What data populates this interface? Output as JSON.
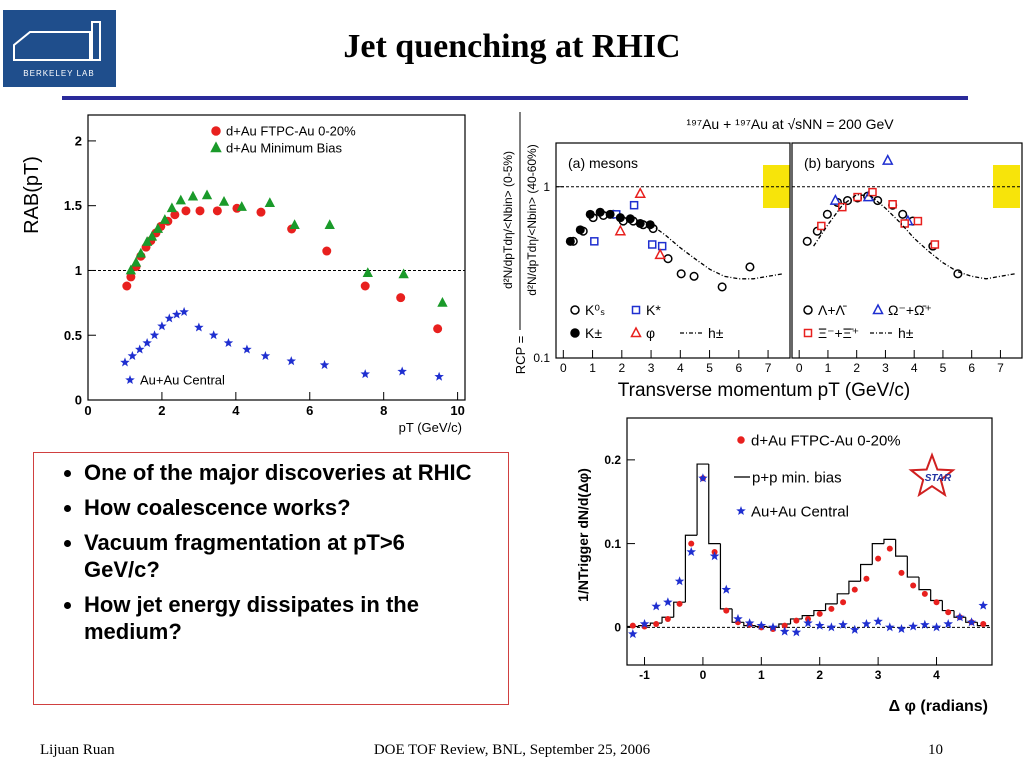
{
  "logo": {
    "text": "BERKELEY LAB"
  },
  "title": "Jet quenching at RHIC",
  "bullets": [
    "One of the major discoveries at RHIC",
    "How coalescence works?",
    "Vacuum fragmentation at pT>6 GeV/c?",
    "How jet energy dissipates in the medium?"
  ],
  "footer": {
    "left": "Lijuan Ruan",
    "center": "DOE TOF Review, BNL, September 25, 2006",
    "right": "10"
  },
  "chart_data": [
    {
      "type": "scatter",
      "xlabel": "pT (GeV/c)",
      "ylabel": "RAB(pT)",
      "xlim": [
        0,
        10.2
      ],
      "ylim": [
        0,
        2.2
      ],
      "xticks": [
        0,
        2,
        4,
        6,
        8,
        10
      ],
      "yticks": [
        0,
        0.5,
        1,
        1.5,
        2
      ],
      "reference_line": 1,
      "series": [
        {
          "name": "d+Au FTPC-Au 0-20%",
          "color": "#e8201e",
          "marker": "circle",
          "x": [
            1.05,
            1.16,
            1.3,
            1.43,
            1.57,
            1.7,
            1.84,
            1.97,
            2.16,
            2.35,
            2.65,
            3.03,
            3.5,
            4.03,
            4.68,
            5.51,
            6.46,
            7.5,
            8.46,
            9.46
          ],
          "values": [
            0.88,
            0.95,
            1.03,
            1.11,
            1.18,
            1.23,
            1.29,
            1.34,
            1.38,
            1.43,
            1.46,
            1.46,
            1.46,
            1.48,
            1.45,
            1.32,
            1.15,
            0.88,
            0.79,
            0.55
          ]
        },
        {
          "name": "d+Au Minimum Bias",
          "color": "#1a9a2a",
          "marker": "triangle",
          "x": [
            1.16,
            1.3,
            1.43,
            1.6,
            1.73,
            1.89,
            2.08,
            2.27,
            2.51,
            2.84,
            3.22,
            3.68,
            4.16,
            4.92,
            5.59,
            6.54,
            7.57,
            8.54,
            9.59
          ],
          "values": [
            1.0,
            1.06,
            1.13,
            1.22,
            1.26,
            1.32,
            1.39,
            1.48,
            1.54,
            1.57,
            1.58,
            1.53,
            1.49,
            1.52,
            1.35,
            1.35,
            0.98,
            0.97,
            0.75
          ]
        },
        {
          "name": "Au+Au Central",
          "color": "#1f2fd0",
          "marker": "star",
          "x": [
            1.0,
            1.2,
            1.4,
            1.6,
            1.8,
            2.0,
            2.2,
            2.4,
            2.6,
            3.0,
            3.4,
            3.8,
            4.3,
            4.8,
            5.5,
            6.4,
            7.5,
            8.5,
            9.5
          ],
          "values": [
            0.29,
            0.34,
            0.39,
            0.44,
            0.5,
            0.57,
            0.63,
            0.66,
            0.68,
            0.56,
            0.5,
            0.44,
            0.39,
            0.34,
            0.3,
            0.27,
            0.2,
            0.22,
            0.18
          ]
        }
      ]
    },
    {
      "type": "scatter",
      "title": "¹⁹⁷Au + ¹⁹⁷Au at √sNN = 200 GeV",
      "xlabel": "Transverse momentum pT (GeV/c)",
      "ylabel": [
        "RCP =",
        "d²N/dpTdη/<Nbin> (0-5%)",
        "d²N/dpTdη/<Nbin> (40-60%)"
      ],
      "xlim": [
        -0.25,
        7.75
      ],
      "ylim": [
        0.1,
        1.8
      ],
      "log_y": true,
      "xticks": [
        0,
        1,
        2,
        3,
        4,
        5,
        6,
        7
      ],
      "yticks": [
        0.1,
        1
      ],
      "reference_line": 1,
      "panels": [
        {
          "title": "(a) mesons",
          "series": [
            {
              "name": "K⁰ₛ",
              "color": "#000000",
              "marker": "open-circle",
              "x": [
                0.34,
                0.68,
                1.02,
                1.37,
                1.71,
                2.05,
                2.39,
                2.73,
                3.07,
                3.58,
                4.03,
                4.47,
                5.43,
                6.38
              ],
              "values": [
                0.48,
                0.55,
                0.66,
                0.68,
                0.69,
                0.63,
                0.63,
                0.6,
                0.57,
                0.38,
                0.31,
                0.3,
                0.26,
                0.34
              ]
            },
            {
              "name": "K*",
              "color": "#1f2fd0",
              "marker": "square",
              "x": [
                1.06,
                1.81,
                2.42,
                3.04,
                3.38
              ],
              "values": [
                0.48,
                0.69,
                0.78,
                0.46,
                0.45
              ]
            },
            {
              "name": "K±",
              "color": "#000000",
              "marker": "circle",
              "x": [
                0.24,
                0.58,
                0.92,
                1.26,
                1.6,
                1.95,
                2.29,
                2.63,
                2.97
              ],
              "values": [
                0.48,
                0.56,
                0.69,
                0.71,
                0.69,
                0.66,
                0.65,
                0.61,
                0.6
              ]
            },
            {
              "name": "φ",
              "color": "#e8201e",
              "marker": "open-triangle",
              "x": [
                1.95,
                2.63,
                3.31
              ],
              "values": [
                0.55,
                0.91,
                0.4
              ]
            },
            {
              "name": "h±",
              "color": "#000000",
              "marker": "dashdot",
              "x": [
                3.0,
                3.5,
                4.0,
                4.5,
                5.0,
                5.5,
                6.0,
                6.5,
                7.0,
                7.5
              ],
              "values": [
                0.6,
                0.52,
                0.44,
                0.38,
                0.33,
                0.3,
                0.29,
                0.29,
                0.3,
                0.31
              ]
            }
          ]
        },
        {
          "title": "(b) baryons",
          "series": [
            {
              "name": "Λ+Λ̄",
              "color": "#000000",
              "marker": "open-circle",
              "x": [
                0.28,
                0.63,
                0.98,
                1.33,
                1.68,
                2.03,
                2.38,
                2.73,
                3.25,
                3.6,
                3.95,
                4.65,
                5.52
              ],
              "values": [
                0.48,
                0.55,
                0.69,
                0.81,
                0.83,
                0.86,
                0.88,
                0.83,
                0.78,
                0.69,
                0.63,
                0.45,
                0.31
              ]
            },
            {
              "name": "Ω⁻+Ω̄⁺",
              "color": "#1f2fd0",
              "marker": "open-triangle",
              "x": [
                1.26,
                2.41,
                3.08,
                3.78
              ],
              "values": [
                0.83,
                0.87,
                1.42,
                0.63
              ]
            },
            {
              "name": "Ξ⁻+Ξ̄⁺",
              "color": "#e8201e",
              "marker": "square",
              "x": [
                0.77,
                1.5,
                2.03,
                2.55,
                3.25,
                3.67,
                4.13,
                4.72
              ],
              "values": [
                0.59,
                0.76,
                0.87,
                0.93,
                0.79,
                0.61,
                0.63,
                0.46
              ]
            },
            {
              "name": "h±",
              "color": "#000000",
              "marker": "dashdot",
              "x": [
                0.5,
                1.0,
                1.5,
                2.0,
                2.5,
                3.0,
                3.5,
                4.0,
                4.5,
                5.0,
                5.5,
                6.0,
                6.5,
                7.0,
                7.5
              ],
              "values": [
                0.45,
                0.6,
                0.78,
                0.9,
                0.88,
                0.75,
                0.62,
                0.5,
                0.42,
                0.36,
                0.32,
                0.3,
                0.29,
                0.3,
                0.31
              ]
            }
          ]
        }
      ]
    },
    {
      "type": "scatter",
      "xlabel": "Δ φ (radians)",
      "ylabel": "1/NTrigger dN/d(Δφ)",
      "logo": "STAR",
      "xlim": [
        -1.3,
        4.95
      ],
      "ylim": [
        -0.045,
        0.25
      ],
      "xticks": [
        -1,
        0,
        1,
        2,
        3,
        4
      ],
      "yticks": [
        0,
        0.1,
        0.2
      ],
      "reference_line": 0,
      "series": [
        {
          "name": "d+Au FTPC-Au 0-20%",
          "color": "#e8201e",
          "marker": "dot",
          "x": [
            -1.2,
            -1.0,
            -0.8,
            -0.6,
            -0.4,
            -0.2,
            0,
            0.2,
            0.4,
            0.6,
            0.8,
            1.0,
            1.2,
            1.4,
            1.6,
            1.8,
            2.0,
            2.2,
            2.4,
            2.6,
            2.8,
            3.0,
            3.2,
            3.4,
            3.6,
            3.8,
            4.0,
            4.2,
            4.4,
            4.6,
            4.8
          ],
          "values": [
            0.002,
            0.001,
            0.004,
            0.01,
            0.028,
            0.1,
            0.178,
            0.09,
            0.02,
            0.006,
            0.003,
            0.0,
            -0.002,
            0.002,
            0.008,
            0.01,
            0.016,
            0.022,
            0.03,
            0.045,
            0.058,
            0.082,
            0.094,
            0.065,
            0.05,
            0.04,
            0.03,
            0.018,
            0.012,
            0.006,
            0.004
          ]
        },
        {
          "name": "p+p min. bias",
          "color": "#000000",
          "marker": "step",
          "x": [
            -1.2,
            -1.0,
            -0.8,
            -0.6,
            -0.4,
            -0.2,
            0,
            0.2,
            0.4,
            0.6,
            0.8,
            1.0,
            1.2,
            1.4,
            1.6,
            1.8,
            2.0,
            2.2,
            2.4,
            2.6,
            2.8,
            3.0,
            3.2,
            3.4,
            3.6,
            3.8,
            4.0,
            4.2,
            4.4,
            4.6,
            4.8
          ],
          "values": [
            0.001,
            0.002,
            0.005,
            0.012,
            0.03,
            0.11,
            0.195,
            0.1,
            0.022,
            0.006,
            0.002,
            0.001,
            0.0,
            0.004,
            0.01,
            0.014,
            0.02,
            0.028,
            0.04,
            0.055,
            0.075,
            0.1,
            0.105,
            0.085,
            0.06,
            0.045,
            0.032,
            0.02,
            0.012,
            0.006,
            0.002
          ]
        },
        {
          "name": "Au+Au Central",
          "color": "#1f2fd0",
          "marker": "star",
          "x": [
            -1.2,
            -1.0,
            -0.8,
            -0.6,
            -0.4,
            -0.2,
            0,
            0.2,
            0.4,
            0.6,
            0.8,
            1.0,
            1.2,
            1.4,
            1.6,
            1.8,
            2.0,
            2.2,
            2.4,
            2.6,
            2.8,
            3.0,
            3.2,
            3.4,
            3.6,
            3.8,
            4.0,
            4.2,
            4.4,
            4.6,
            4.8
          ],
          "values": [
            -0.008,
            0.004,
            0.025,
            0.03,
            0.055,
            0.09,
            0.178,
            0.085,
            0.045,
            0.01,
            0.005,
            0.002,
            0.0,
            -0.005,
            -0.006,
            0.005,
            0.002,
            0.0,
            0.003,
            -0.003,
            0.004,
            0.007,
            0.0,
            -0.002,
            0.001,
            0.003,
            0.0,
            0.004,
            0.012,
            0.006,
            0.026
          ]
        }
      ]
    }
  ]
}
